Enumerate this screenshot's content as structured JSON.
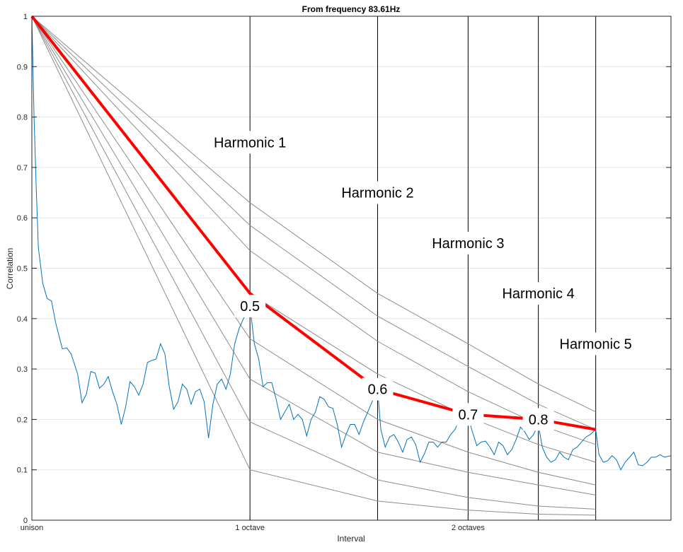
{
  "chart_data": {
    "type": "line",
    "title": "From frequency 83.61Hz",
    "xlabel": "Interval",
    "ylabel": "Correlation",
    "xlim": [
      0,
      2.93
    ],
    "ylim": [
      0,
      1
    ],
    "grid": true,
    "x_ticks": [
      {
        "value": 0,
        "label": "unison"
      },
      {
        "value": 1,
        "label": "1 octave"
      },
      {
        "value": 2,
        "label": "2 octaves"
      }
    ],
    "y_ticks": [
      {
        "value": 0,
        "label": "0"
      },
      {
        "value": 0.1,
        "label": "0.1"
      },
      {
        "value": 0.2,
        "label": "0.2"
      },
      {
        "value": 0.3,
        "label": "0.3"
      },
      {
        "value": 0.4,
        "label": "0.4"
      },
      {
        "value": 0.5,
        "label": "0.5"
      },
      {
        "value": 0.6,
        "label": "0.6"
      },
      {
        "value": 0.7,
        "label": "0.7"
      },
      {
        "value": 0.8,
        "label": "0.8"
      },
      {
        "value": 0.9,
        "label": "0.9"
      },
      {
        "value": 1,
        "label": "1"
      }
    ],
    "harmonics": [
      {
        "label": "Harmonic 1",
        "x": 1.0,
        "label_y": 0.75
      },
      {
        "label": "Harmonic 2",
        "x": 1.585,
        "label_y": 0.65
      },
      {
        "label": "Harmonic 3",
        "x": 2.0,
        "label_y": 0.55
      },
      {
        "label": "Harmonic 4",
        "x": 2.322,
        "label_y": 0.45
      },
      {
        "label": "Harmonic 5",
        "x": 2.585,
        "label_y": 0.35
      }
    ],
    "series": [
      {
        "values": [
          [
            0,
            1.0
          ],
          [
            0.01,
            0.8
          ],
          [
            0.02,
            0.66
          ],
          [
            0.03,
            0.54
          ],
          [
            0.05,
            0.47
          ],
          [
            0.07,
            0.44
          ],
          [
            0.09,
            0.435
          ],
          [
            0.11,
            0.39
          ],
          [
            0.14,
            0.34
          ],
          [
            0.16,
            0.342
          ],
          [
            0.18,
            0.33
          ],
          [
            0.21,
            0.29
          ],
          [
            0.23,
            0.233
          ],
          [
            0.25,
            0.25
          ],
          [
            0.27,
            0.295
          ],
          [
            0.29,
            0.292
          ],
          [
            0.31,
            0.262
          ],
          [
            0.33,
            0.27
          ],
          [
            0.35,
            0.285
          ],
          [
            0.37,
            0.255
          ],
          [
            0.39,
            0.23
          ],
          [
            0.41,
            0.19
          ],
          [
            0.43,
            0.225
          ],
          [
            0.45,
            0.275
          ],
          [
            0.47,
            0.265
          ],
          [
            0.49,
            0.248
          ],
          [
            0.51,
            0.27
          ],
          [
            0.53,
            0.313
          ],
          [
            0.55,
            0.317
          ],
          [
            0.57,
            0.32
          ],
          [
            0.59,
            0.35
          ],
          [
            0.61,
            0.33
          ],
          [
            0.63,
            0.265
          ],
          [
            0.65,
            0.22
          ],
          [
            0.67,
            0.235
          ],
          [
            0.69,
            0.27
          ],
          [
            0.71,
            0.26
          ],
          [
            0.73,
            0.23
          ],
          [
            0.75,
            0.255
          ],
          [
            0.77,
            0.26
          ],
          [
            0.79,
            0.235
          ],
          [
            0.81,
            0.163
          ],
          [
            0.83,
            0.23
          ],
          [
            0.85,
            0.27
          ],
          [
            0.87,
            0.28
          ],
          [
            0.89,
            0.26
          ],
          [
            0.91,
            0.29
          ],
          [
            0.93,
            0.35
          ],
          [
            0.95,
            0.38
          ],
          [
            0.97,
            0.4
          ],
          [
            1.0,
            0.425
          ],
          [
            1.02,
            0.35
          ],
          [
            1.04,
            0.32
          ],
          [
            1.06,
            0.265
          ],
          [
            1.08,
            0.273
          ],
          [
            1.1,
            0.273
          ],
          [
            1.12,
            0.24
          ],
          [
            1.14,
            0.2
          ],
          [
            1.16,
            0.215
          ],
          [
            1.18,
            0.23
          ],
          [
            1.2,
            0.2
          ],
          [
            1.22,
            0.21
          ],
          [
            1.24,
            0.2
          ],
          [
            1.26,
            0.167
          ],
          [
            1.28,
            0.2
          ],
          [
            1.3,
            0.215
          ],
          [
            1.32,
            0.245
          ],
          [
            1.34,
            0.24
          ],
          [
            1.36,
            0.225
          ],
          [
            1.38,
            0.222
          ],
          [
            1.4,
            0.19
          ],
          [
            1.42,
            0.145
          ],
          [
            1.44,
            0.17
          ],
          [
            1.46,
            0.19
          ],
          [
            1.48,
            0.19
          ],
          [
            1.5,
            0.17
          ],
          [
            1.52,
            0.195
          ],
          [
            1.54,
            0.215
          ],
          [
            1.56,
            0.235
          ],
          [
            1.585,
            0.26
          ],
          [
            1.6,
            0.18
          ],
          [
            1.62,
            0.145
          ],
          [
            1.64,
            0.165
          ],
          [
            1.66,
            0.17
          ],
          [
            1.68,
            0.155
          ],
          [
            1.7,
            0.135
          ],
          [
            1.72,
            0.16
          ],
          [
            1.74,
            0.165
          ],
          [
            1.76,
            0.15
          ],
          [
            1.78,
            0.115
          ],
          [
            1.8,
            0.132
          ],
          [
            1.82,
            0.155
          ],
          [
            1.84,
            0.155
          ],
          [
            1.86,
            0.145
          ],
          [
            1.88,
            0.155
          ],
          [
            1.9,
            0.155
          ],
          [
            1.92,
            0.17
          ],
          [
            1.94,
            0.18
          ],
          [
            1.96,
            0.2
          ],
          [
            1.98,
            0.2
          ],
          [
            2.0,
            0.205
          ],
          [
            2.02,
            0.175
          ],
          [
            2.04,
            0.148
          ],
          [
            2.06,
            0.155
          ],
          [
            2.08,
            0.157
          ],
          [
            2.1,
            0.145
          ],
          [
            2.12,
            0.13
          ],
          [
            2.14,
            0.155
          ],
          [
            2.16,
            0.148
          ],
          [
            2.18,
            0.13
          ],
          [
            2.2,
            0.14
          ],
          [
            2.22,
            0.16
          ],
          [
            2.24,
            0.185
          ],
          [
            2.26,
            0.175
          ],
          [
            2.28,
            0.16
          ],
          [
            2.3,
            0.17
          ],
          [
            2.322,
            0.19
          ],
          [
            2.34,
            0.145
          ],
          [
            2.36,
            0.125
          ],
          [
            2.38,
            0.115
          ],
          [
            2.4,
            0.12
          ],
          [
            2.42,
            0.135
          ],
          [
            2.44,
            0.125
          ],
          [
            2.46,
            0.12
          ],
          [
            2.48,
            0.14
          ],
          [
            2.5,
            0.145
          ],
          [
            2.52,
            0.155
          ],
          [
            2.54,
            0.165
          ],
          [
            2.56,
            0.17
          ],
          [
            2.585,
            0.18
          ],
          [
            2.6,
            0.13
          ],
          [
            2.62,
            0.115
          ],
          [
            2.64,
            0.118
          ],
          [
            2.66,
            0.128
          ],
          [
            2.68,
            0.12
          ],
          [
            2.7,
            0.1
          ],
          [
            2.72,
            0.115
          ],
          [
            2.74,
            0.125
          ],
          [
            2.76,
            0.135
          ],
          [
            2.78,
            0.11
          ],
          [
            2.8,
            0.108
          ],
          [
            2.82,
            0.115
          ],
          [
            2.84,
            0.125
          ],
          [
            2.86,
            0.125
          ],
          [
            2.88,
            0.13
          ],
          [
            2.9,
            0.125
          ],
          [
            2.93,
            0.128
          ]
        ],
        "color": "#0072BD"
      }
    ],
    "grey_lines": [
      [
        [
          0,
          1
        ],
        [
          1.0,
          0.63
        ],
        [
          1.585,
          0.45
        ],
        [
          2.0,
          0.35
        ],
        [
          2.322,
          0.27
        ],
        [
          2.585,
          0.215
        ]
      ],
      [
        [
          0,
          1
        ],
        [
          1.0,
          0.585
        ],
        [
          1.585,
          0.405
        ],
        [
          2.0,
          0.305
        ],
        [
          2.322,
          0.23
        ],
        [
          2.585,
          0.18
        ]
      ],
      [
        [
          0,
          1
        ],
        [
          1.0,
          0.535
        ],
        [
          1.585,
          0.355
        ],
        [
          2.0,
          0.255
        ],
        [
          2.322,
          0.19
        ],
        [
          2.585,
          0.15
        ]
      ],
      [
        [
          0,
          1
        ],
        [
          1.0,
          0.45
        ],
        [
          1.585,
          0.29
        ],
        [
          2.0,
          0.205
        ],
        [
          2.322,
          0.15
        ],
        [
          2.585,
          0.115
        ]
      ],
      [
        [
          0,
          1
        ],
        [
          1.0,
          0.36
        ],
        [
          1.585,
          0.2
        ],
        [
          2.0,
          0.135
        ],
        [
          2.322,
          0.095
        ],
        [
          2.585,
          0.07
        ]
      ],
      [
        [
          0,
          1
        ],
        [
          1.0,
          0.28
        ],
        [
          1.585,
          0.135
        ],
        [
          2.0,
          0.095
        ],
        [
          2.322,
          0.07
        ],
        [
          2.585,
          0.05
        ]
      ],
      [
        [
          0,
          1
        ],
        [
          1.0,
          0.195
        ],
        [
          1.585,
          0.08
        ],
        [
          2.0,
          0.045
        ],
        [
          2.322,
          0.028
        ],
        [
          2.585,
          0.022
        ]
      ],
      [
        [
          0,
          1
        ],
        [
          1.0,
          0.1
        ],
        [
          1.585,
          0.038
        ],
        [
          2.0,
          0.02
        ],
        [
          2.322,
          0.012
        ],
        [
          2.585,
          0.01
        ]
      ]
    ],
    "red_line": {
      "color": "#ff0000",
      "points": [
        [
          0,
          1
        ],
        [
          1.0,
          0.45
        ],
        [
          1.585,
          0.26
        ],
        [
          2.0,
          0.21
        ],
        [
          2.322,
          0.2
        ],
        [
          2.585,
          0.18
        ]
      ],
      "labels": [
        {
          "text": "0.5",
          "x": 1.0,
          "y": 0.425
        },
        {
          "text": "0.6",
          "x": 1.585,
          "y": 0.26
        },
        {
          "text": "0.7",
          "x": 2.0,
          "y": 0.21
        },
        {
          "text": "0.8",
          "x": 2.322,
          "y": 0.2
        }
      ]
    }
  }
}
